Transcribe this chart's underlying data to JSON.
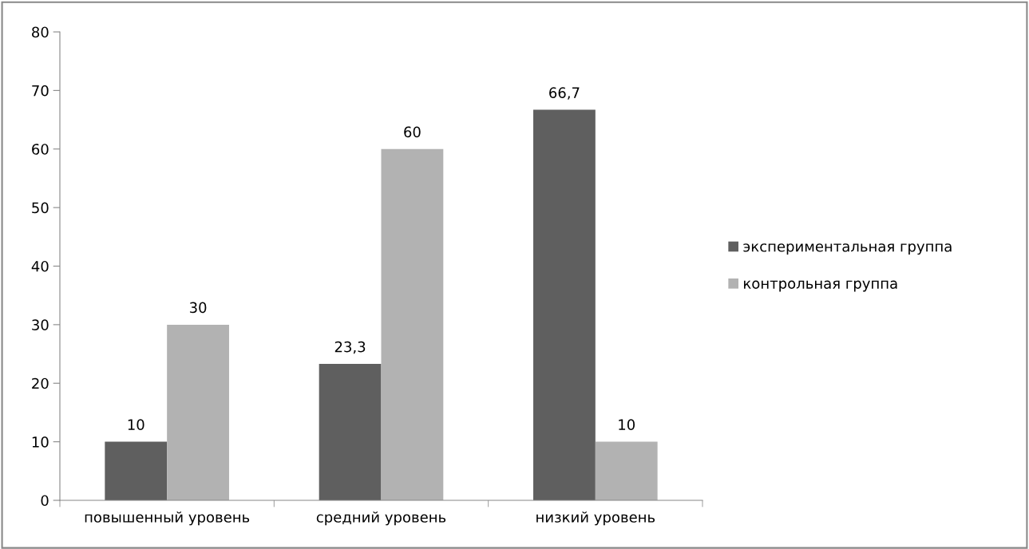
{
  "chart_data": {
    "type": "bar",
    "categories": [
      "повышенный уровень",
      "средний уровень",
      "низкий уровень"
    ],
    "series": [
      {
        "name": "экспериментальная группа",
        "color": "#5f5f5f",
        "values": [
          10,
          23.3,
          66.7
        ],
        "value_labels": [
          "10",
          "23,3",
          "66,7"
        ]
      },
      {
        "name": "контрольная группа",
        "color": "#b2b2b2",
        "values": [
          30,
          60,
          10
        ],
        "value_labels": [
          "30",
          "60",
          "10"
        ]
      }
    ],
    "ylim": [
      0,
      80
    ],
    "yticks": [
      0,
      10,
      20,
      30,
      40,
      50,
      60,
      70,
      80
    ],
    "grid": false,
    "legend": "right"
  }
}
